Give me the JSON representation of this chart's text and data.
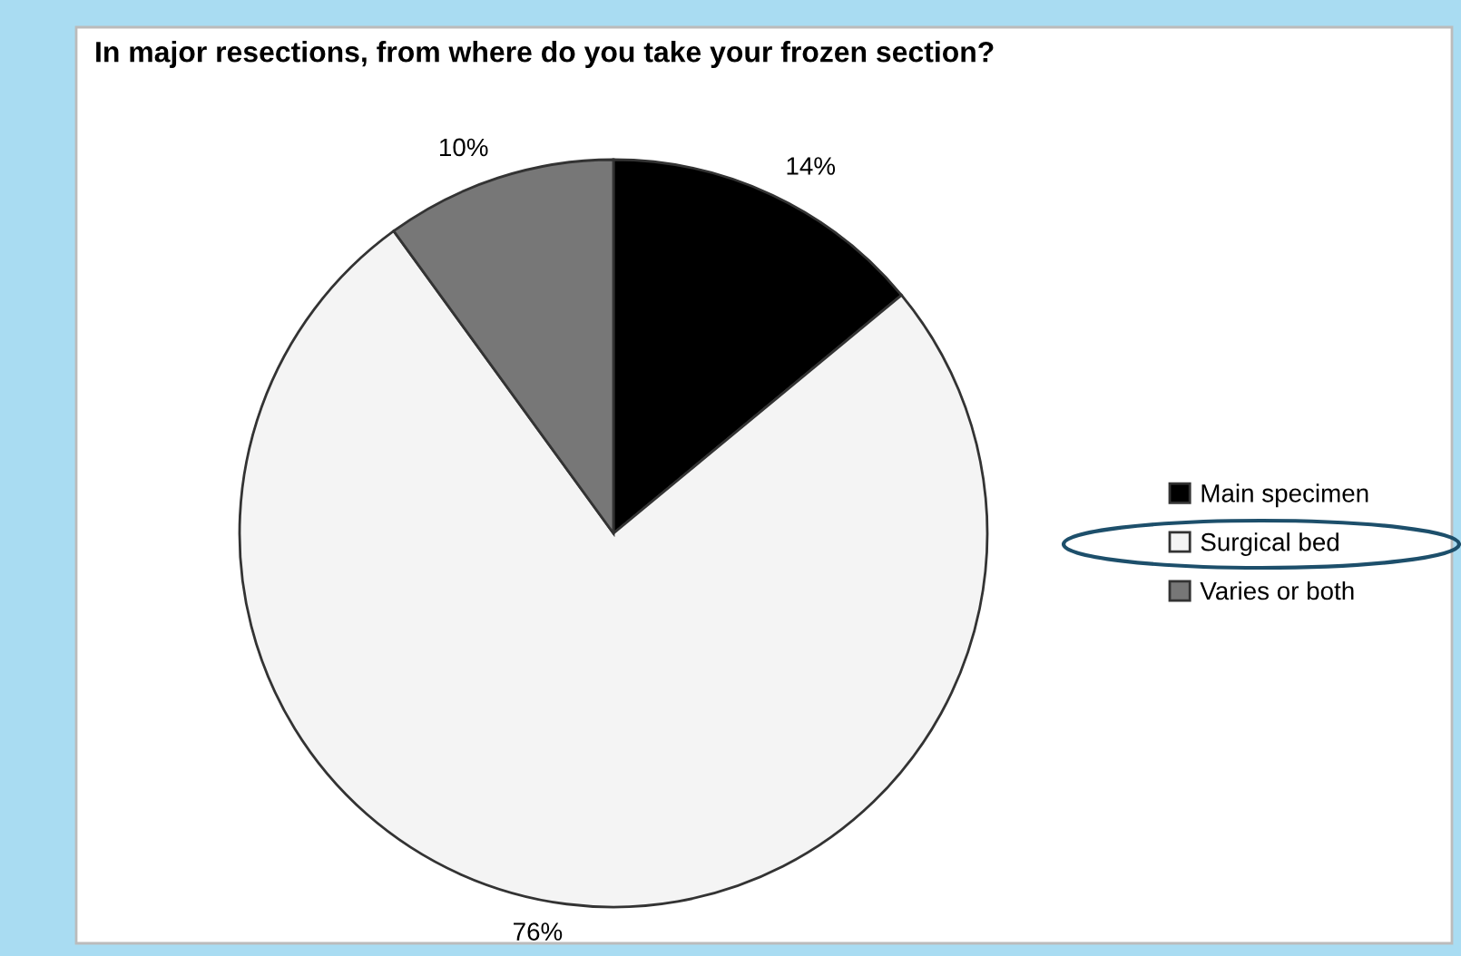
{
  "chart_data": {
    "type": "pie",
    "title": "In major resections, from where do you take your frozen section?",
    "categories": [
      "Main specimen",
      "Surgical bed",
      "Varies or both"
    ],
    "values": [
      14,
      76,
      10
    ],
    "colors": [
      "#000000",
      "#f4f4f4",
      "#777777"
    ],
    "value_labels": [
      "14%",
      "76%",
      "10%"
    ],
    "legend": "right"
  }
}
